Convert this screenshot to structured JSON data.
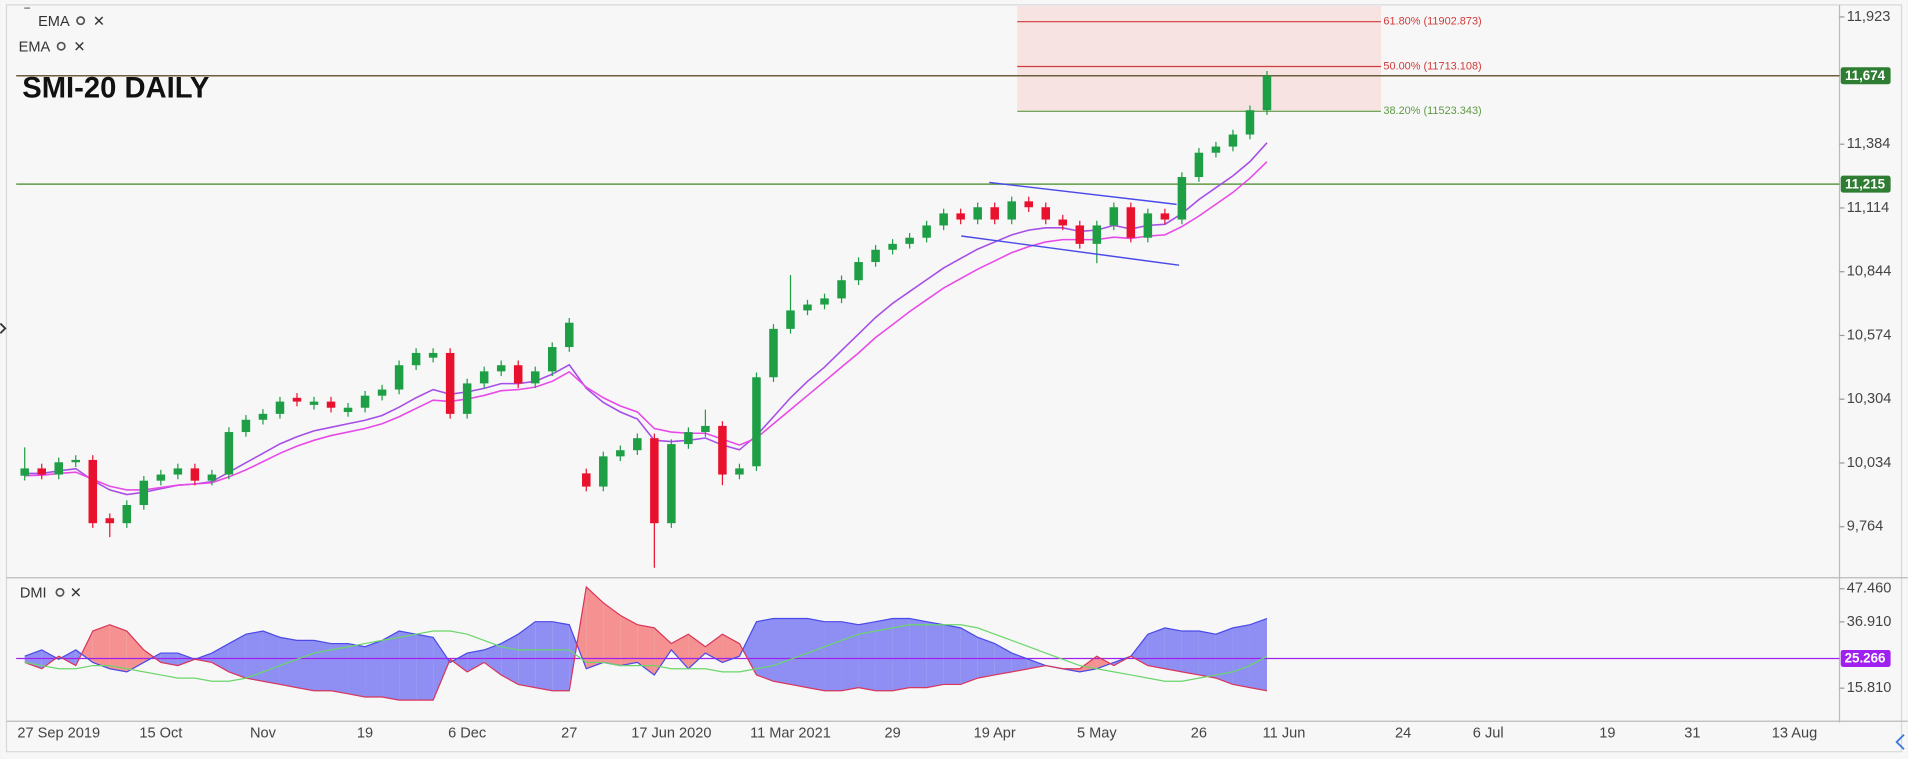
{
  "chart_data": {
    "type": "candlestick",
    "title": "SMI-20 DAILY",
    "overlays": [
      "EMA",
      "EMA"
    ],
    "categories": [
      null,
      null,
      "27 Sep 2019",
      null,
      null,
      null,
      null,
      null,
      "15 Oct",
      null,
      null,
      null,
      null,
      null,
      "Nov",
      null,
      null,
      null,
      null,
      null,
      "19",
      null,
      null,
      null,
      null,
      null,
      "6 Dec",
      null,
      null,
      null,
      null,
      null,
      "27",
      null,
      null,
      null,
      null,
      null,
      "17 Jun 2020",
      null,
      null,
      null,
      null,
      null,
      null,
      "11 Mar 2021",
      null,
      null,
      null,
      null,
      null,
      "29",
      null,
      null,
      null,
      null,
      null,
      "19 Apr",
      null,
      null,
      null,
      null,
      null,
      "5 May",
      null,
      null,
      null,
      null,
      null,
      "26",
      null,
      null,
      null,
      null,
      "11 Jun",
      null,
      null,
      null,
      null,
      null,
      null,
      "24",
      null,
      null,
      null,
      null,
      "6 Jul",
      null,
      null,
      null,
      null,
      null,
      null,
      "19",
      null,
      null,
      null,
      null,
      "31",
      null,
      null,
      null,
      null,
      null,
      "13 Aug",
      null,
      null
    ],
    "open": [
      9980,
      10011,
      9985,
      10037,
      10047,
      9800,
      9779,
      9856,
      9959,
      9985,
      10011,
      9959,
      9985,
      10165,
      10217,
      10242,
      10310,
      10280,
      10294,
      10250,
      10268,
      10319,
      10345,
      10448,
      10480,
      10500,
      10242,
      10371,
      10422,
      10448,
      10371,
      10422,
      10525,
      9990,
      9934,
      10062,
      10088,
      10139,
      9779,
      10114,
      10165,
      10191,
      9985,
      10020,
      10397,
      10602,
      10680,
      10705,
      10731,
      10808,
      10885,
      10937,
      10962,
      10988,
      11040,
      11091,
      11065,
      11117,
      11065,
      11142,
      11117,
      11065,
      11040,
      10962,
      11040,
      11117,
      10988,
      11091,
      11065,
      11245,
      11348,
      11374,
      11425,
      11528,
      null,
      null,
      null,
      null,
      null,
      null,
      null,
      null,
      null,
      null,
      null,
      null,
      null,
      null,
      null,
      null,
      null,
      null,
      null,
      null,
      null,
      null,
      null,
      null,
      null,
      null,
      null,
      null,
      null,
      null,
      null,
      null,
      null
    ],
    "high": [
      10100,
      10031,
      10057,
      10067,
      10067,
      9820,
      9876,
      9979,
      10005,
      10031,
      10031,
      10005,
      10185,
      10237,
      10262,
      10314,
      10330,
      10314,
      10314,
      10288,
      10339,
      10365,
      10468,
      10520,
      10520,
      10520,
      10391,
      10442,
      10468,
      10468,
      10442,
      10545,
      10648,
      10010,
      10082,
      10108,
      10159,
      10159,
      10134,
      10185,
      10260,
      10211,
      10031,
      10417,
      10622,
      10830,
      10725,
      10751,
      10828,
      10905,
      10957,
      10982,
      11008,
      11060,
      11111,
      11111,
      11137,
      11137,
      11162,
      11162,
      11137,
      11085,
      11060,
      11060,
      11137,
      11137,
      11111,
      11111,
      11265,
      11368,
      11394,
      11445,
      11548,
      11694,
      null,
      null,
      null,
      null,
      null,
      null,
      null,
      null,
      null,
      null,
      null,
      null,
      null,
      null,
      null,
      null,
      null,
      null,
      null,
      null,
      null,
      null,
      null,
      null,
      null,
      null,
      null,
      null,
      null,
      null,
      null,
      null,
      null
    ],
    "low": [
      9960,
      9965,
      9965,
      10017,
      9759,
      9720,
      9759,
      9836,
      9939,
      9965,
      9939,
      9939,
      9965,
      10145,
      10197,
      10222,
      10274,
      10260,
      10248,
      10230,
      10248,
      10299,
      10325,
      10428,
      10460,
      10222,
      10222,
      10351,
      10402,
      10351,
      10351,
      10402,
      10505,
      9914,
      9914,
      10042,
      10068,
      9590,
      9759,
      10094,
      10145,
      9940,
      9965,
      10000,
      10377,
      10582,
      10660,
      10685,
      10711,
      10788,
      10865,
      10917,
      10942,
      10968,
      11020,
      11045,
      11045,
      11045,
      11045,
      11097,
      11045,
      11020,
      10942,
      10880,
      11020,
      10968,
      10968,
      11045,
      11045,
      11225,
      11328,
      11354,
      11405,
      11508,
      null,
      null,
      null,
      null,
      null,
      null,
      null,
      null,
      null,
      null,
      null,
      null,
      null,
      null,
      null,
      null,
      null,
      null,
      null,
      null,
      null,
      null,
      null,
      null,
      null,
      null,
      null,
      null,
      null,
      null,
      null,
      null,
      null
    ],
    "close": [
      10011,
      9985,
      10037,
      10047,
      9779,
      9779,
      9856,
      9959,
      9985,
      10011,
      9959,
      9985,
      10165,
      10217,
      10242,
      10294,
      10294,
      10294,
      10268,
      10268,
      10319,
      10345,
      10448,
      10500,
      10500,
      10242,
      10371,
      10422,
      10448,
      10371,
      10422,
      10525,
      10628,
      9934,
      10062,
      10088,
      10139,
      9779,
      10114,
      10165,
      10191,
      9985,
      10011,
      10397,
      10602,
      10680,
      10705,
      10731,
      10808,
      10885,
      10937,
      10962,
      10988,
      11040,
      11091,
      11065,
      11117,
      11065,
      11142,
      11117,
      11065,
      11040,
      10962,
      11040,
      11117,
      10988,
      11091,
      11065,
      11245,
      11348,
      11374,
      11425,
      11528,
      11674,
      null,
      null,
      null,
      null,
      null,
      null,
      null,
      null,
      null,
      null,
      null,
      null,
      null,
      null,
      null,
      null,
      null,
      null,
      null,
      null,
      null,
      null,
      null,
      null,
      null,
      null,
      null,
      null,
      null,
      null,
      null,
      null,
      null
    ],
    "up_color": "#1e9e45",
    "down_color": "#e8122e",
    "ema": [
      {
        "color": "#a64ee6",
        "values": [
          9990,
          9990,
          10000,
          10010,
          9960,
          9920,
          9900,
          9910,
          9925,
          9940,
          9945,
          9955,
          9995,
          10035,
          10075,
          10115,
          10145,
          10170,
          10185,
          10200,
          10215,
          10235,
          10270,
          10310,
          10345,
          10325,
          10335,
          10350,
          10370,
          10370,
          10380,
          10410,
          10450,
          10350,
          10290,
          10250,
          10220,
          10130,
          10125,
          10130,
          10140,
          10110,
          10090,
          10150,
          10230,
          10310,
          10380,
          10440,
          10510,
          10580,
          10650,
          10710,
          10760,
          10810,
          10860,
          10900,
          10940,
          10970,
          11000,
          11020,
          11030,
          11030,
          11015,
          11020,
          11040,
          11025,
          11040,
          11045,
          11090,
          11150,
          11200,
          11250,
          11310,
          11390,
          null,
          null,
          null,
          null,
          null,
          null,
          null,
          null,
          null,
          null,
          null,
          null,
          null,
          null,
          null,
          null,
          null,
          null,
          null,
          null,
          null,
          null,
          null,
          null,
          null,
          null,
          null,
          null,
          null,
          null,
          null,
          null,
          null
        ]
      },
      {
        "color": "#e84ae8",
        "values": [
          9980,
          9982,
          9990,
          9995,
          9965,
          9935,
          9920,
          9920,
          9930,
          9940,
          9945,
          9950,
          9975,
          10005,
          10040,
          10075,
          10105,
          10130,
          10150,
          10165,
          10180,
          10200,
          10230,
          10265,
          10300,
          10295,
          10305,
          10320,
          10340,
          10345,
          10355,
          10380,
          10420,
          10355,
          10310,
          10275,
          10250,
          10180,
          10165,
          10160,
          10160,
          10135,
          10110,
          10140,
          10200,
          10260,
          10320,
          10380,
          10440,
          10500,
          10565,
          10620,
          10675,
          10725,
          10775,
          10815,
          10855,
          10890,
          10925,
          10950,
          10970,
          10980,
          10980,
          10980,
          10990,
          10985,
          10995,
          11000,
          11035,
          11080,
          11130,
          11180,
          11240,
          11310,
          null,
          null,
          null,
          null,
          null,
          null,
          null,
          null,
          null,
          null,
          null,
          null,
          null,
          null,
          null,
          null,
          null,
          null,
          null,
          null,
          null,
          null,
          null,
          null,
          null,
          null,
          null,
          null,
          null,
          null,
          null,
          null,
          null
        ]
      }
    ],
    "ylim": [
      9553,
      11969
    ],
    "yticks": [
      {
        "value": 9764,
        "label": "9,764"
      },
      {
        "value": 10034,
        "label": "10,034"
      },
      {
        "value": 10304,
        "label": "10,304"
      },
      {
        "value": 10574,
        "label": "10,574"
      },
      {
        "value": 10844,
        "label": "10,844"
      },
      {
        "value": 11114,
        "label": "11,114"
      },
      {
        "value": 11384,
        "label": "11,384"
      },
      {
        "value": 11923,
        "label": "11,923"
      }
    ],
    "price_lines": [
      {
        "value": 11674,
        "label": "11,674",
        "color": "#2e7d32",
        "line_color": "#6e5e3e"
      },
      {
        "value": 11215,
        "label": "11,215",
        "color": "#2e7d32",
        "line_color": "#5f9a45"
      }
    ],
    "fib": [
      {
        "value": 11902.873,
        "label": "61.80% (11902.873)",
        "color": "#d03a3a"
      },
      {
        "value": 11713.108,
        "label": "50.00% (11713.108)",
        "color": "#d03a3a"
      },
      {
        "value": 11523.343,
        "label": "38.20% (11523.343)",
        "color": "#5f9a45"
      }
    ],
    "dmi": {
      "title": "DMI",
      "plus_color": "#4a4ae8",
      "minus_color": "#d8365a",
      "adx_color": "#6ad66a",
      "plus": [
        26,
        28,
        25,
        28,
        24,
        22,
        21,
        24,
        27,
        27,
        25,
        27,
        30,
        33,
        34,
        32,
        31,
        31,
        30,
        30,
        29,
        31,
        34,
        33,
        32,
        24,
        27,
        28,
        30,
        33,
        37,
        37,
        36,
        22,
        24,
        23,
        24,
        20,
        28,
        22,
        27,
        24,
        26,
        37,
        38,
        38,
        38,
        37,
        37,
        36,
        37,
        38,
        38,
        37,
        36,
        35,
        32,
        30,
        27,
        25,
        23,
        22,
        21,
        22,
        24,
        26,
        33,
        35,
        34,
        34,
        33,
        35,
        36,
        38,
        null,
        null,
        null,
        null,
        null,
        null,
        null,
        null,
        null,
        null,
        null,
        null,
        null,
        null,
        null,
        null,
        null,
        null,
        null,
        null,
        null,
        null,
        null,
        null,
        null,
        null,
        null,
        null,
        null,
        null,
        null,
        null,
        null
      ],
      "minus": [
        24,
        22,
        26,
        23,
        34,
        36,
        34,
        28,
        24,
        23,
        25,
        24,
        21,
        19,
        18,
        17,
        16,
        15,
        15,
        14,
        13,
        13,
        12,
        12,
        12,
        25,
        21,
        24,
        20,
        17,
        16,
        15,
        15,
        48,
        43,
        39,
        36,
        35,
        30,
        33,
        29,
        33,
        30,
        20,
        18,
        17,
        16,
        15,
        15,
        16,
        15,
        15,
        16,
        16,
        17,
        17,
        19,
        20,
        21,
        22,
        23,
        22,
        22,
        26,
        23,
        26,
        23,
        22,
        21,
        20,
        19,
        17,
        16,
        15,
        null,
        null,
        null,
        null,
        null,
        null,
        null,
        null,
        null,
        null,
        null,
        null,
        null,
        null,
        null,
        null,
        null,
        null,
        null,
        null,
        null,
        null,
        null,
        null,
        null,
        null,
        null,
        null,
        null,
        null,
        null,
        null,
        null
      ],
      "adx": [
        24,
        23,
        22,
        22,
        23,
        23,
        22,
        21,
        20,
        19,
        19,
        18,
        18,
        19,
        21,
        23,
        25,
        27,
        28,
        29,
        30,
        31,
        32,
        33,
        34,
        34,
        33,
        31,
        29,
        28,
        28,
        28,
        28,
        24,
        24,
        23,
        23,
        23,
        22,
        22,
        22,
        21,
        21,
        22,
        23,
        25,
        27,
        29,
        31,
        33,
        34,
        35,
        36,
        36,
        36,
        36,
        35,
        33,
        31,
        29,
        27,
        25,
        23,
        22,
        21,
        20,
        19,
        18,
        18,
        19,
        20,
        21,
        23,
        26,
        null,
        null,
        null,
        null,
        null,
        null,
        null,
        null,
        null,
        null,
        null,
        null,
        null,
        null,
        null,
        null,
        null,
        null,
        null,
        null,
        null,
        null,
        null,
        null,
        null,
        null,
        null,
        null,
        null,
        null,
        null,
        null,
        null
      ],
      "ylim": [
        5.65,
        49.8
      ],
      "yticks": [
        {
          "value": 15.81,
          "label": "15.810"
        },
        {
          "value": 36.91,
          "label": "36.910"
        },
        {
          "value": 47.46,
          "label": "47.460"
        }
      ],
      "marker": {
        "value": 25.266,
        "label": "25.266",
        "color": "#a020f0"
      }
    }
  }
}
